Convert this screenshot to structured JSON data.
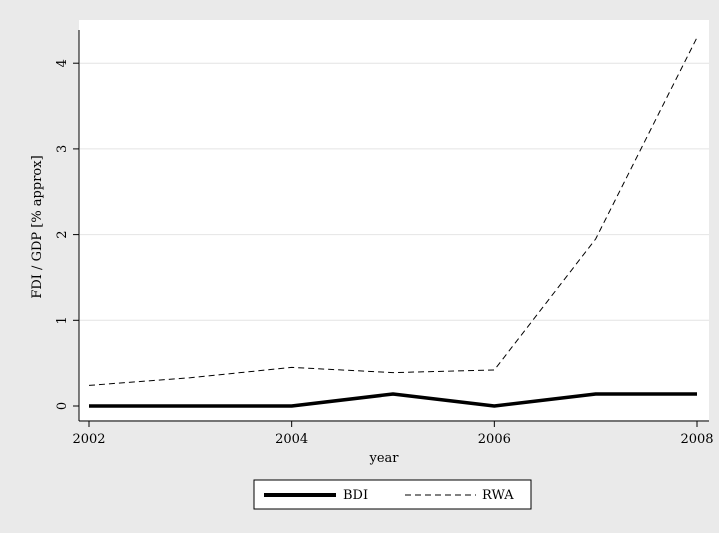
{
  "chart_data": {
    "type": "line",
    "xlabel": "year",
    "ylabel": "FDI / GDP  [% approx]",
    "x": [
      2002,
      2003,
      2004,
      2005,
      2006,
      2007,
      2008
    ],
    "xticks": [
      "2002",
      "2004",
      "2006",
      "2008"
    ],
    "yticks": [
      "0",
      "1",
      "2",
      "3",
      "4"
    ],
    "xlim": [
      2002,
      2008
    ],
    "ylim": [
      0,
      4.3
    ],
    "grid": "horizontal",
    "legend_position": "bottom",
    "series": [
      {
        "name": "BDI",
        "style": "solid-thick",
        "color": "#000000",
        "values": [
          0.0,
          0.0,
          0.0,
          0.14,
          0.0,
          0.14,
          0.14
        ]
      },
      {
        "name": "RWA",
        "style": "dashed",
        "color": "#000000",
        "values": [
          0.24,
          0.33,
          0.45,
          0.39,
          0.42,
          1.95,
          4.3
        ]
      }
    ]
  },
  "colors": {
    "background": "#eaeaea",
    "plot_area": "#ffffff",
    "grid": "#e4e4e4"
  }
}
